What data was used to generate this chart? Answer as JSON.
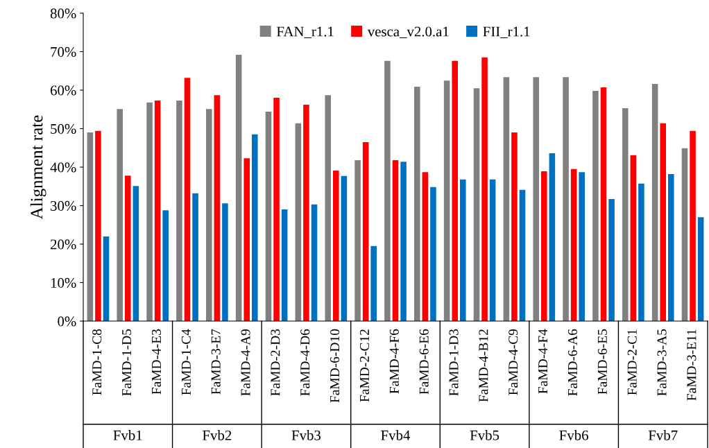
{
  "chart_data": {
    "type": "bar",
    "ylabel": "Alignment rate",
    "categories": [
      "FaMD-1-C8",
      "FaMD-1-D5",
      "FaMD-4-E3",
      "FaMD-1-C4",
      "FaMD-3-E7",
      "FaMD-4-A9",
      "FaMD-2-D3",
      "FaMD-4-D6",
      "FaMD-6-D10",
      "FaMD-2-C12",
      "FaMD-4-F6",
      "FaMD-6-E6",
      "FaMD-1-D3",
      "FaMD-4-B12",
      "FaMD-4-C9",
      "FaMD-4-F4",
      "FaMD-6-A6",
      "FaMD-6-E5",
      "FaMD-2-C1",
      "FaMD-3-A5",
      "FaMD-3-E11"
    ],
    "series": [
      {
        "name": "FAN_r1.1",
        "color": "#808080",
        "values": [
          49.0,
          55.1,
          56.8,
          57.3,
          55.1,
          69.2,
          54.4,
          51.4,
          58.7,
          41.8,
          67.6,
          60.9,
          62.5,
          60.5,
          63.4,
          63.4,
          63.4,
          59.8,
          55.3,
          61.6,
          44.9
        ]
      },
      {
        "name": "vesca_v2.0.a1",
        "color": "#ff0000",
        "values": [
          49.4,
          37.8,
          57.3,
          63.2,
          58.7,
          42.3,
          58.0,
          56.2,
          39.1,
          46.5,
          41.8,
          38.7,
          67.6,
          68.5,
          49.0,
          38.9,
          39.5,
          60.7,
          43.1,
          51.4,
          49.4
        ]
      },
      {
        "name": "FII_r1.1",
        "color": "#0070c0",
        "values": [
          22.0,
          35.1,
          28.8,
          33.2,
          30.6,
          48.5,
          29.0,
          30.3,
          37.7,
          19.5,
          41.4,
          34.8,
          36.8,
          36.8,
          34.1,
          43.6,
          38.7,
          31.7,
          35.7,
          38.2,
          27.0
        ]
      }
    ],
    "ylim": [
      0,
      80
    ],
    "yticks": [
      {
        "value": 0,
        "label": "0%"
      },
      {
        "value": 10,
        "label": "10%"
      },
      {
        "value": 20,
        "label": "20%"
      },
      {
        "value": 30,
        "label": "30%"
      },
      {
        "value": 40,
        "label": "40%"
      },
      {
        "value": 50,
        "label": "50%"
      },
      {
        "value": 60,
        "label": "60%"
      },
      {
        "value": 70,
        "label": "70%"
      },
      {
        "value": 80,
        "label": "80%"
      }
    ],
    "annotations": [
      "Fvb1",
      "Fvb2",
      "Fvb3",
      "Fvb4",
      "Fvb5",
      "Fvb6",
      "Fvb7"
    ],
    "legend": "top",
    "grid": false
  }
}
